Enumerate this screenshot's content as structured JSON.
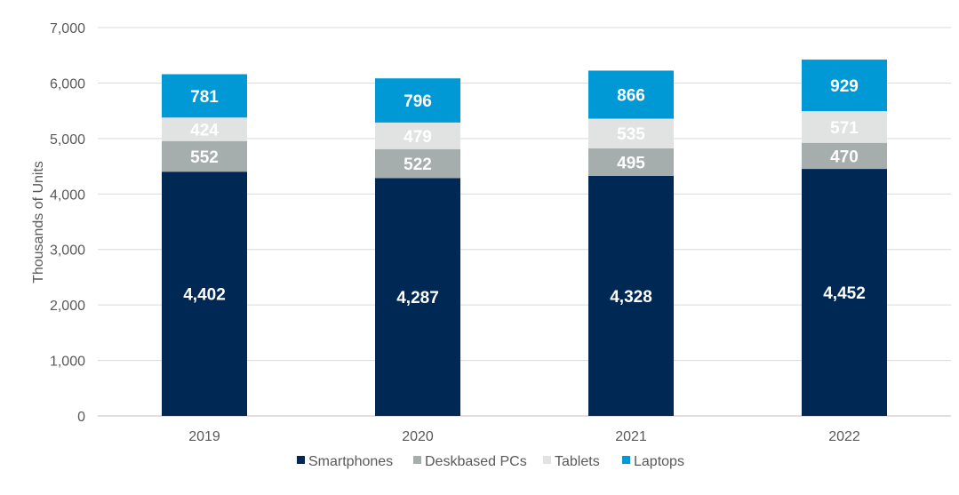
{
  "chart_data": {
    "type": "bar",
    "stacked": true,
    "categories": [
      "2019",
      "2020",
      "2021",
      "2022"
    ],
    "series": [
      {
        "name": "Smartphones",
        "color": "#002855",
        "values": [
          4402,
          4287,
          4328,
          4452
        ],
        "labels": [
          "4,402",
          "4,287",
          "4,328",
          "4,452"
        ]
      },
      {
        "name": "Deskbased PCs",
        "color": "#a6adad",
        "values": [
          552,
          522,
          495,
          470
        ],
        "labels": [
          "552",
          "522",
          "495",
          "470"
        ]
      },
      {
        "name": "Tablets",
        "color": "#e1e2e2",
        "values": [
          424,
          479,
          535,
          571
        ],
        "labels": [
          "424",
          "479",
          "535",
          "571"
        ]
      },
      {
        "name": "Laptops",
        "color": "#0099d5",
        "values": [
          781,
          796,
          866,
          929
        ],
        "labels": [
          "781",
          "796",
          "866",
          "929"
        ]
      }
    ],
    "title": "",
    "xlabel": "",
    "ylabel": "Thousands of Units",
    "ylim": [
      0,
      7000
    ],
    "yticks": [
      "0",
      "1,000",
      "2,000",
      "3,000",
      "4,000",
      "5,000",
      "6,000",
      "7,000"
    ],
    "grid": true,
    "legend_position": "bottom"
  }
}
